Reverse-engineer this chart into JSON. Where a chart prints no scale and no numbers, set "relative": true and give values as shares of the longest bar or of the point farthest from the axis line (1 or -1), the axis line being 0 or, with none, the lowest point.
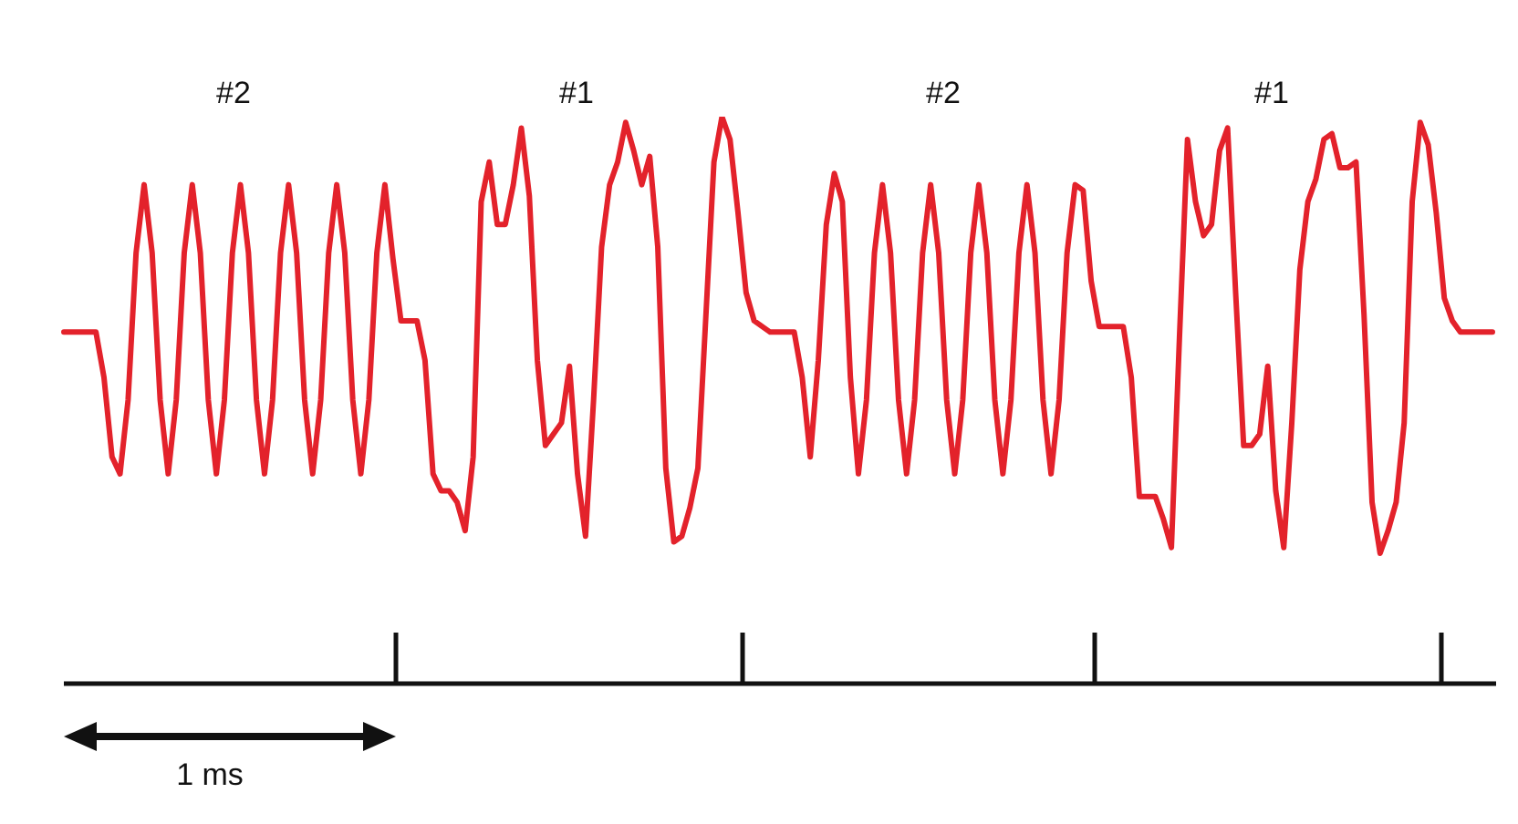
{
  "chart_data": {
    "type": "line",
    "relative": true,
    "legend": false,
    "marker": "none",
    "line_style": "solid",
    "annotations": [
      "#2",
      "#1",
      "#2",
      "#1",
      "1 ms"
    ],
    "categories": [
      null,
      null,
      null,
      null,
      null,
      null,
      null,
      null,
      null,
      null,
      null,
      null,
      null,
      null,
      null,
      null,
      null,
      null,
      null,
      null,
      null,
      null,
      null,
      null,
      null,
      null,
      null,
      null,
      null,
      null,
      null,
      null,
      null,
      null,
      null,
      null,
      null,
      null,
      null,
      null,
      null,
      null,
      null,
      null,
      null,
      null,
      null,
      null,
      null,
      null,
      null,
      null,
      null,
      null,
      null,
      null,
      null,
      null,
      null,
      null,
      null,
      null,
      null,
      null,
      null,
      null,
      null,
      null,
      null,
      null,
      null,
      null,
      null,
      null,
      null,
      null,
      null,
      null,
      null,
      null,
      null,
      null,
      null,
      null,
      null,
      null,
      null,
      null,
      null,
      null,
      null,
      null,
      null,
      null,
      null,
      null,
      null,
      null,
      null,
      null,
      null,
      null,
      null,
      null,
      null,
      null,
      null,
      null,
      null,
      null,
      null,
      null,
      null,
      null,
      null,
      null,
      null,
      null,
      null,
      null,
      null,
      null,
      null,
      null,
      null,
      null,
      null,
      null,
      null,
      null,
      null,
      null,
      null,
      null,
      null,
      null,
      null,
      null,
      null,
      null,
      null,
      null,
      null,
      null,
      null,
      null,
      null,
      null,
      null,
      null,
      null,
      null,
      null,
      null,
      null,
      null,
      null,
      null,
      null,
      null,
      null,
      null,
      null,
      null,
      null,
      null,
      null,
      null,
      null,
      null,
      null,
      null,
      null,
      null,
      null,
      null,
      null,
      null,
      null
    ],
    "series": [
      {
        "color": "#e3222b",
        "values": [
          0.62,
          0.62,
          0.62,
          0.62,
          0.62,
          0.54,
          0.4,
          0.37,
          0.5,
          0.76,
          0.88,
          0.76,
          0.5,
          0.37,
          0.5,
          0.76,
          0.88,
          0.76,
          0.5,
          0.37,
          0.5,
          0.76,
          0.88,
          0.76,
          0.5,
          0.37,
          0.5,
          0.76,
          0.88,
          0.76,
          0.5,
          0.37,
          0.5,
          0.76,
          0.88,
          0.76,
          0.5,
          0.37,
          0.5,
          0.76,
          0.88,
          0.75,
          0.64,
          0.64,
          0.64,
          0.57,
          0.37,
          0.34,
          0.34,
          0.32,
          0.27,
          0.4,
          0.85,
          0.92,
          0.81,
          0.81,
          0.88,
          0.98,
          0.86,
          0.57,
          0.42,
          0.44,
          0.46,
          0.56,
          0.37,
          0.26,
          0.5,
          0.77,
          0.88,
          0.92,
          0.99,
          0.94,
          0.88,
          0.93,
          0.77,
          0.38,
          0.25,
          0.26,
          0.31,
          0.38,
          0.65,
          0.92,
          1.0,
          0.96,
          0.83,
          0.69,
          0.64,
          0.63,
          0.62,
          0.62,
          0.62,
          0.62,
          0.54,
          0.4,
          0.57,
          0.81,
          0.9,
          0.85,
          0.54,
          0.37,
          0.5,
          0.76,
          0.88,
          0.76,
          0.5,
          0.37,
          0.5,
          0.76,
          0.88,
          0.76,
          0.5,
          0.37,
          0.5,
          0.76,
          0.88,
          0.76,
          0.5,
          0.37,
          0.5,
          0.76,
          0.88,
          0.76,
          0.5,
          0.37,
          0.5,
          0.76,
          0.88,
          0.87,
          0.71,
          0.63,
          0.63,
          0.63,
          0.63,
          0.54,
          0.33,
          0.33,
          0.33,
          0.29,
          0.24,
          0.61,
          0.96,
          0.85,
          0.79,
          0.81,
          0.94,
          0.98,
          0.69,
          0.42,
          0.42,
          0.44,
          0.56,
          0.34,
          0.24,
          0.46,
          0.73,
          0.85,
          0.89,
          0.96,
          0.97,
          0.91,
          0.91,
          0.92,
          0.65,
          0.32,
          0.23,
          0.27,
          0.32,
          0.46,
          0.85,
          0.99,
          0.95,
          0.83,
          0.68,
          0.64,
          0.62,
          0.62,
          0.62,
          0.62,
          0.62
        ]
      }
    ]
  }
}
